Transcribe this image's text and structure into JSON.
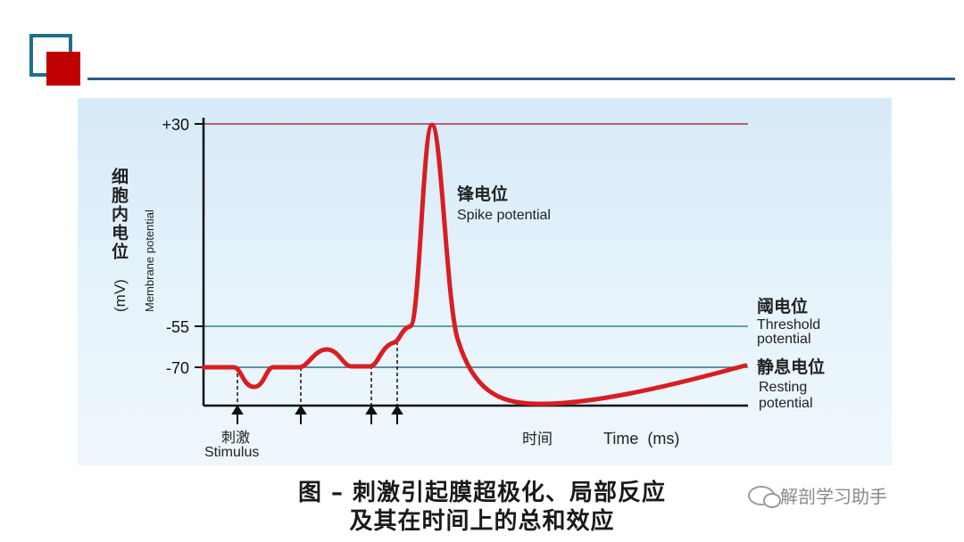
{
  "header": {
    "logo": "red-square-logo",
    "colors": {
      "outline": "#1f6f8b",
      "fill": "#c00000",
      "rule": "#2e5b8a"
    }
  },
  "diagram": {
    "y_axis": {
      "label_cn": "细胞内电位",
      "label_unit": "(mV)",
      "label_en": "Membrane potential",
      "ticks": [
        "+30",
        "-55",
        "-70"
      ]
    },
    "annotations": {
      "spike_cn": "锋电位",
      "spike_en": "Spike potential",
      "threshold_cn": "阈电位",
      "threshold_en_1": "Threshold",
      "threshold_en_2": "potential",
      "resting_cn": "静息电位",
      "resting_en_1": "Resting",
      "resting_en_2": "potential"
    },
    "stimulus": {
      "label_cn": "刺激",
      "label_en": "Stimulus"
    },
    "x_axis": {
      "label_cn": "时间",
      "label_en": "Time  (ms)"
    },
    "colors": {
      "trace": "#d81e22",
      "peak_line": "#b0304a",
      "threshold_line": "#2f8a78",
      "resting_line": "#2f6f86",
      "axis": "#111111"
    }
  },
  "caption": {
    "line1": "图 – 刺激引起膜超极化、局部反应",
    "line2": "及其在时间上的总和效应"
  },
  "watermark": {
    "text": "解剖学习助手"
  }
}
